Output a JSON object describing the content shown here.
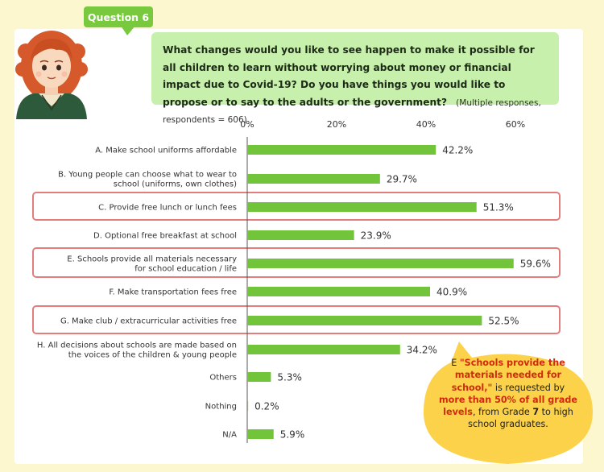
{
  "question_tag": "Question 6",
  "question": {
    "text": "What changes would you like to see happen to make it possible for all children to learn without worrying about money or financial impact due to Covid-19? Do you have things you would like to propose or to say to the adults or the government?",
    "note": "(Multiple responses, respondents = 606)"
  },
  "chart_data": {
    "type": "bar",
    "orientation": "horizontal",
    "categories": [
      [
        "A. Make school uniforms affordable"
      ],
      [
        "B. Young people can choose what to wear to",
        "school (uniforms, own clothes)"
      ],
      [
        "C. Provide free lunch or lunch fees"
      ],
      [
        "D. Optional free breakfast at school"
      ],
      [
        "E. Schools provide all materials necessary",
        "for school education / life"
      ],
      [
        "F. Make transportation fees free"
      ],
      [
        "G. Make club / extracurricular activities free"
      ],
      [
        "H. All decisions about schools are made based on",
        "the voices of the children & young people"
      ],
      [
        "Others"
      ],
      [
        "Nothing"
      ],
      [
        "N/A"
      ]
    ],
    "values": [
      42.2,
      29.7,
      51.3,
      23.9,
      59.6,
      40.9,
      52.5,
      34.2,
      5.3,
      0.2,
      5.9
    ],
    "value_labels": [
      "42.2%",
      "29.7%",
      "51.3%",
      "23.9%",
      "59.6%",
      "40.9%",
      "52.5%",
      "34.2%",
      "5.3%",
      "0.2%",
      "5.9%"
    ],
    "x_ticks": [
      0,
      20,
      40,
      60
    ],
    "x_tick_labels": [
      "0%",
      "20%",
      "40%",
      "60%"
    ],
    "xlim": [
      0,
      70
    ],
    "highlighted": [
      2,
      4,
      6
    ],
    "bar_color": "#72c43b",
    "highlight_color": "#e37d7d"
  },
  "callout": {
    "prefix": "E ",
    "quote": "\"Schools provide the materials needed for school,\"",
    "mid": " is requested by ",
    "emph": "more than 50% of all grade levels",
    "mid2": ", from Grade ",
    "grade": "7",
    "suffix": " to high school graduates.",
    "bg_color": "#fcd24a",
    "accent_color": "#d12b0e"
  }
}
